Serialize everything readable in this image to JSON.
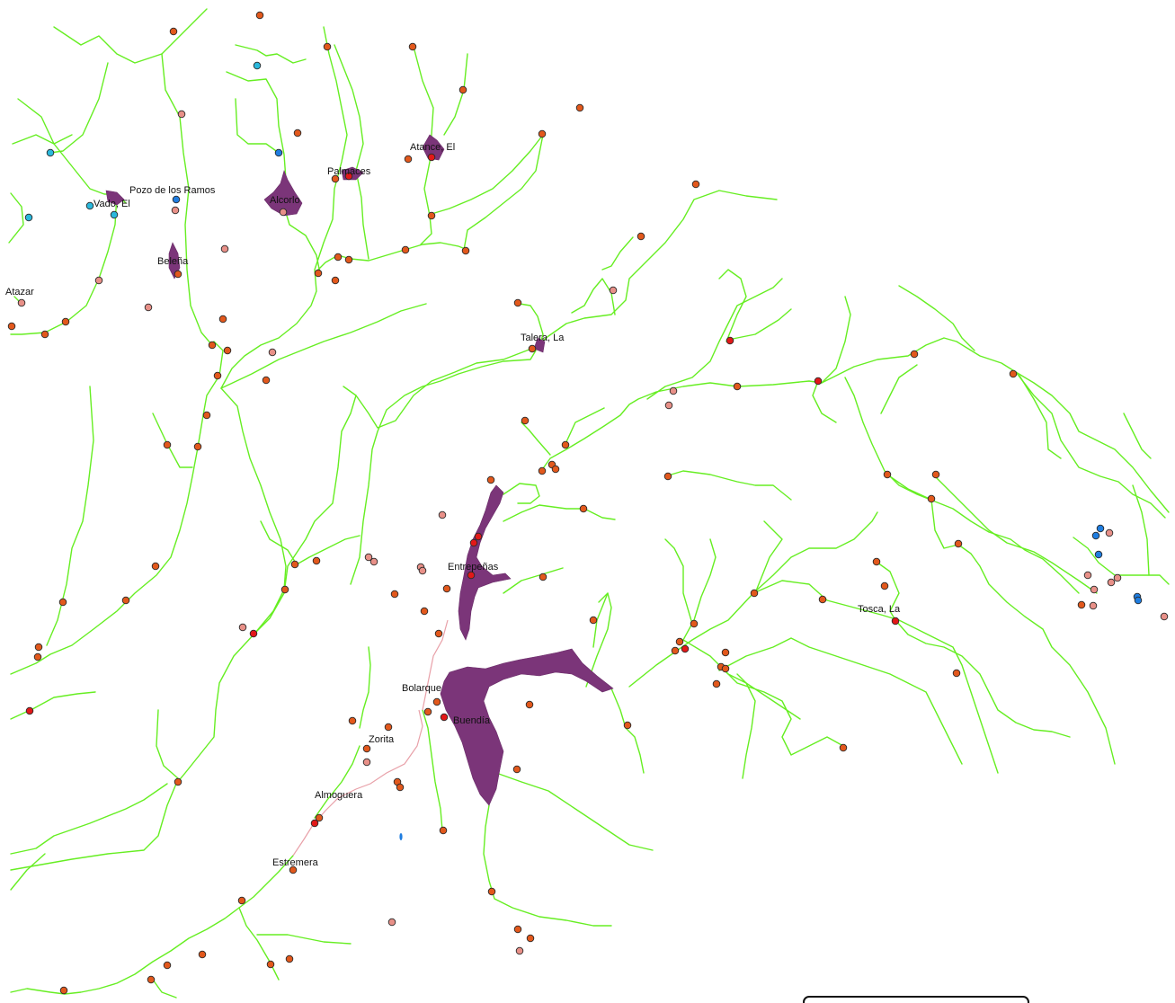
{
  "map": {
    "colors": {
      "river": "#66ee22",
      "reservoir": "#7b3579",
      "gauge_orange": "#e2581c",
      "gauge_red": "#e21818",
      "gauge_pink": "#e89088",
      "gauge_blue": "#1f7de0",
      "gauge_cyan": "#2ab8dc",
      "channel": "#e8a0a8"
    },
    "labels": {
      "atance": "Atance, El",
      "pozo": "Pozo de los Ramos",
      "vado": "Vado, El",
      "palmaces": "Palmaces",
      "alcorlo": "Alcorlo",
      "belena": "Beleña",
      "atazar": "Atazar",
      "talera": "Talera, La",
      "entrepenas": "Entrepeñas",
      "tosca": "Tosca, La",
      "bolarque": "Bolarque",
      "buendia": "Buendía",
      "zorita": "Zorita",
      "almoguera": "Almoguera",
      "estremera": "Estremera"
    },
    "station_types": [
      "orange",
      "red",
      "pink",
      "blue",
      "cyan"
    ]
  }
}
